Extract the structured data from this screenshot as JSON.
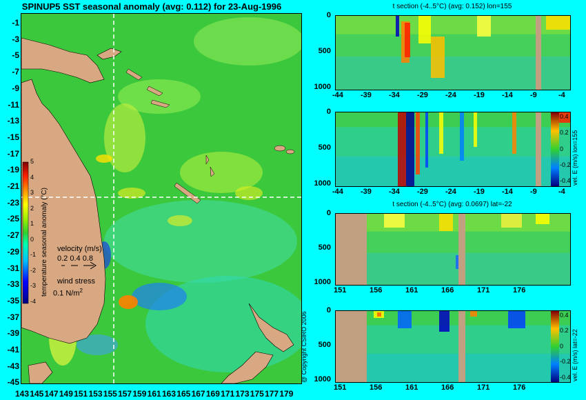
{
  "title": "SPINUP5 SST seasonal anomaly (avg: 0.112) for 23-Aug-1996",
  "copyright": "@ Copyright CSIRO 2006",
  "map": {
    "colorbar_label": "temperature seasonal anomaly (°C)",
    "colorbar_ticks": [
      "5",
      "4",
      "3",
      "2",
      "1",
      "0",
      "-1",
      "-2",
      "-3",
      "-4"
    ],
    "velocity_legend": "velocity (m/s)",
    "velocity_ticks": "0.2 0.4 0.8",
    "wind_legend": "wind stress",
    "wind_value": "0.1 N/m",
    "wind_exp": "2",
    "y_ticks": [
      "-1",
      "-3",
      "-5",
      "-7",
      "-9",
      "-11",
      "-13",
      "-15",
      "-17",
      "-19",
      "-21",
      "-23",
      "-25",
      "-27",
      "-29",
      "-31",
      "-33",
      "-35",
      "-37",
      "-39",
      "-41",
      "-43",
      "-45"
    ],
    "x_ticks": [
      "143",
      "145",
      "147",
      "149",
      "151",
      "153",
      "155",
      "157",
      "159",
      "161",
      "163",
      "165",
      "167",
      "169",
      "171",
      "173",
      "175",
      "177",
      "179"
    ]
  },
  "panels": [
    {
      "title": "t section (-4..5°C) (avg: 0.152) lon=155",
      "y_ticks": [
        "0",
        "500",
        "1000"
      ],
      "x_ticks": [
        "-44",
        "-39",
        "-34",
        "-29",
        "-24",
        "-19",
        "-14",
        "-9",
        "-4"
      ]
    },
    {
      "title": "",
      "y_ticks": [
        "0",
        "500",
        "1000"
      ],
      "x_ticks": [
        "-44",
        "-39",
        "-34",
        "-29",
        "-24",
        "-19",
        "-14",
        "-9",
        "-4"
      ],
      "colorbar_label": "vel. E (m/s) lon=155",
      "colorbar_ticks": [
        "0.4",
        "0.2",
        "0",
        "-0.2",
        "-0.4"
      ]
    },
    {
      "title": "t section (-4..5°C) (avg: 0.0697) lat=-22",
      "y_ticks": [
        "0",
        "500",
        "1000"
      ],
      "x_ticks": [
        "151",
        "156",
        "161",
        "166",
        "171",
        "176"
      ]
    },
    {
      "title": "",
      "y_ticks": [
        "0",
        "500",
        "1000"
      ],
      "x_ticks": [
        "151",
        "156",
        "161",
        "166",
        "171",
        "176"
      ],
      "colorbar_label": "vel. E (m/s) lat=-22",
      "colorbar_ticks": [
        "0.4",
        "0.2",
        "0",
        "-0.2",
        "-0.4"
      ]
    }
  ],
  "chart_data": [
    {
      "type": "heatmap",
      "title": "SPINUP5 SST seasonal anomaly (avg: 0.112) for 23-Aug-1996",
      "x_range": [
        143,
        180
      ],
      "y_range": [
        -45,
        0
      ],
      "color_range": [
        -4,
        5
      ],
      "colorbar_label": "temperature seasonal anomaly (°C)",
      "section_lines": {
        "lon": 155,
        "lat": -22
      }
    },
    {
      "type": "heatmap",
      "title": "t section (-4..5°C) (avg: 0.152) lon=155",
      "x_range": [
        -45,
        0
      ],
      "y_range": [
        0,
        1000
      ],
      "color_range": [
        -4,
        5
      ]
    },
    {
      "type": "heatmap",
      "title": "",
      "x_range": [
        -45,
        0
      ],
      "y_range": [
        0,
        1000
      ],
      "color_range": [
        -0.4,
        0.4
      ],
      "colorbar_label": "vel. E (m/s) lon=155"
    },
    {
      "type": "heatmap",
      "title": "t section (-4..5°C) (avg: 0.0697) lat=-22",
      "x_range": [
        150,
        180
      ],
      "y_range": [
        0,
        1000
      ],
      "color_range": [
        -4,
        5
      ]
    },
    {
      "type": "heatmap",
      "title": "",
      "x_range": [
        150,
        180
      ],
      "y_range": [
        0,
        1000
      ],
      "color_range": [
        -0.4,
        0.4
      ],
      "colorbar_label": "vel. E (m/s) lat=-22"
    }
  ],
  "colors": {
    "background": "#00ffff",
    "land": "#d7a882",
    "section_land": "#c0a080",
    "ocean_base": "#3cc83c",
    "dashed_line": "#ffffff",
    "vector": "#ff00ff"
  }
}
